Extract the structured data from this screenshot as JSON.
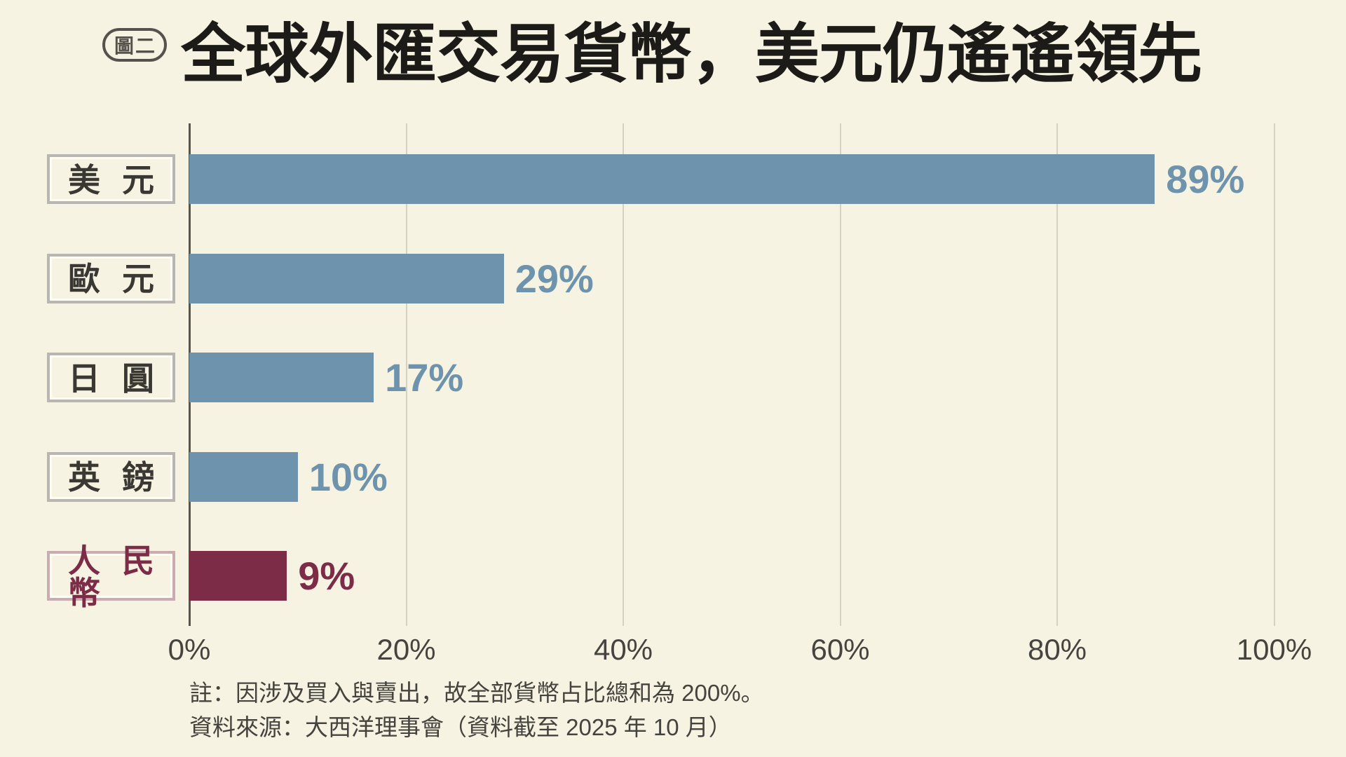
{
  "figure": {
    "badge": "圖二",
    "title": "全球外匯交易貨幣，美元仍遙遙領先"
  },
  "chart_data": {
    "type": "bar",
    "orientation": "horizontal",
    "title": "全球外匯交易貨幣，美元仍遙遙領先",
    "categories": [
      "美元",
      "歐元",
      "日圓",
      "英鎊",
      "人民幣"
    ],
    "values": [
      89,
      29,
      17,
      10,
      9
    ],
    "value_labels": [
      "89%",
      "29%",
      "17%",
      "10%",
      "9%"
    ],
    "xlim": [
      0,
      100
    ],
    "x_ticks": [
      0,
      20,
      40,
      60,
      80,
      100
    ],
    "x_tick_labels": [
      "0%",
      "20%",
      "40%",
      "60%",
      "80%",
      "100%"
    ],
    "grid": true,
    "legend": "none",
    "highlight_index": 4,
    "colors": {
      "background": "#f7f3e2",
      "bar": "#6e93ad",
      "bar_value_text": "#6e93ad",
      "highlight_bar": "#7d2c48",
      "highlight_value_text": "#7d2c48",
      "gridline": "#d6d2c2",
      "axis_line": "#56544c",
      "category_text": "#3a3833",
      "highlight_category_text": "#7d2c48",
      "category_box_border": "#b7b6b0",
      "highlight_category_box_border": "#c9abb0",
      "title_text": "#1c1b18",
      "note_text": "#44433d"
    }
  },
  "notes": {
    "note": "註：因涉及買入與賣出，故全部貨幣占比總和為 200%。",
    "source": "資料來源：大西洋理事會（資料截至 2025 年 10 月）"
  }
}
